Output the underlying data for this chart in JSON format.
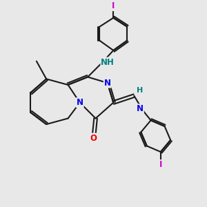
{
  "bg_color": "#e8e8e8",
  "bond_color": "#1a1a1a",
  "N_color": "#0000ee",
  "O_color": "#ee0000",
  "I_color": "#cc00cc",
  "NH_color": "#008080",
  "lw": 1.5,
  "fig_size": [
    3.0,
    3.0
  ],
  "dpi": 100,
  "xlim": [
    0,
    10
  ],
  "ylim": [
    0,
    10
  ]
}
